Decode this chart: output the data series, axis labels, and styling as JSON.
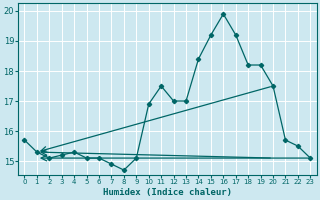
{
  "xlabel": "Humidex (Indice chaleur)",
  "bg_color": "#cde8f0",
  "line_color": "#006666",
  "grid_color": "#ffffff",
  "xlim": [
    -0.5,
    23.5
  ],
  "ylim": [
    14.55,
    20.25
  ],
  "yticks": [
    15,
    16,
    17,
    18,
    19,
    20
  ],
  "xticks": [
    0,
    1,
    2,
    3,
    4,
    5,
    6,
    7,
    8,
    9,
    10,
    11,
    12,
    13,
    14,
    15,
    16,
    17,
    18,
    19,
    20,
    21,
    22,
    23
  ],
  "main_x": [
    0,
    1,
    2,
    3,
    4,
    5,
    6,
    7,
    8,
    9,
    10,
    11,
    12,
    13,
    14,
    15,
    16,
    17,
    18,
    19,
    20,
    21,
    22,
    23
  ],
  "main_y": [
    15.7,
    15.3,
    15.1,
    15.2,
    15.3,
    15.1,
    15.1,
    14.9,
    14.7,
    15.1,
    16.9,
    17.5,
    17.0,
    17.0,
    18.4,
    19.2,
    19.9,
    19.2,
    18.2,
    18.2,
    17.5,
    15.7,
    15.5,
    15.1
  ],
  "upper_line_x": [
    1,
    20
  ],
  "upper_line_y": [
    15.3,
    17.5
  ],
  "lower_line_x": [
    1,
    20
  ],
  "lower_line_y": [
    15.3,
    15.1
  ],
  "horiz_line_x": [
    1,
    23
  ],
  "horiz_line_y": [
    15.1,
    15.1
  ]
}
